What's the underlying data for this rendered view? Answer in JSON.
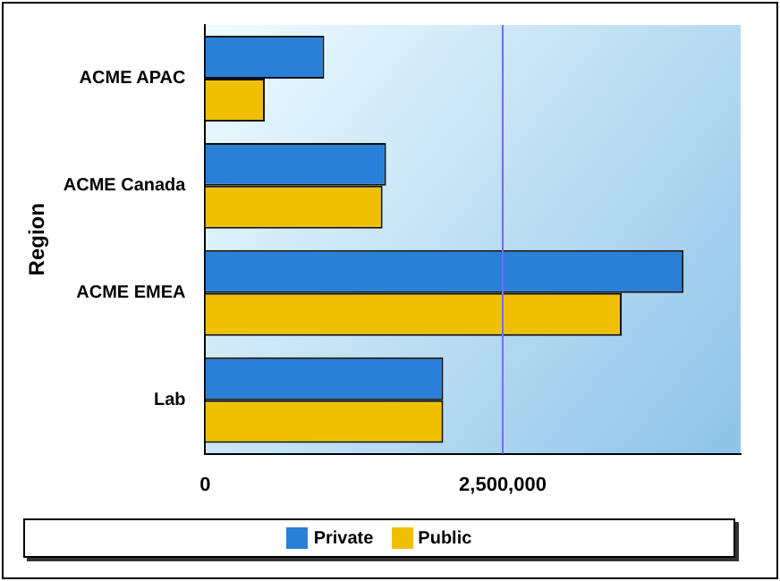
{
  "chart_data": {
    "type": "bar",
    "orientation": "horizontal",
    "ylabel": "Region",
    "categories": [
      "ACME APAC",
      "ACME Canada",
      "ACME EMEA",
      "Lab"
    ],
    "series": [
      {
        "name": "Private",
        "color": "#2a7fd6",
        "values": [
          1000000,
          1520000,
          4020000,
          2000000
        ]
      },
      {
        "name": "Public",
        "color": "#f0c000",
        "values": [
          500000,
          1490000,
          3500000,
          2000000
        ]
      }
    ],
    "xlim": [
      0,
      4500000
    ],
    "xticks": [
      0,
      {
        "value": 2500000,
        "label": "2,500,000"
      }
    ],
    "legend": "bottom",
    "ref_lines": [
      {
        "axis": "x",
        "value": 2500000,
        "color": "#6f6ff5"
      }
    ]
  }
}
